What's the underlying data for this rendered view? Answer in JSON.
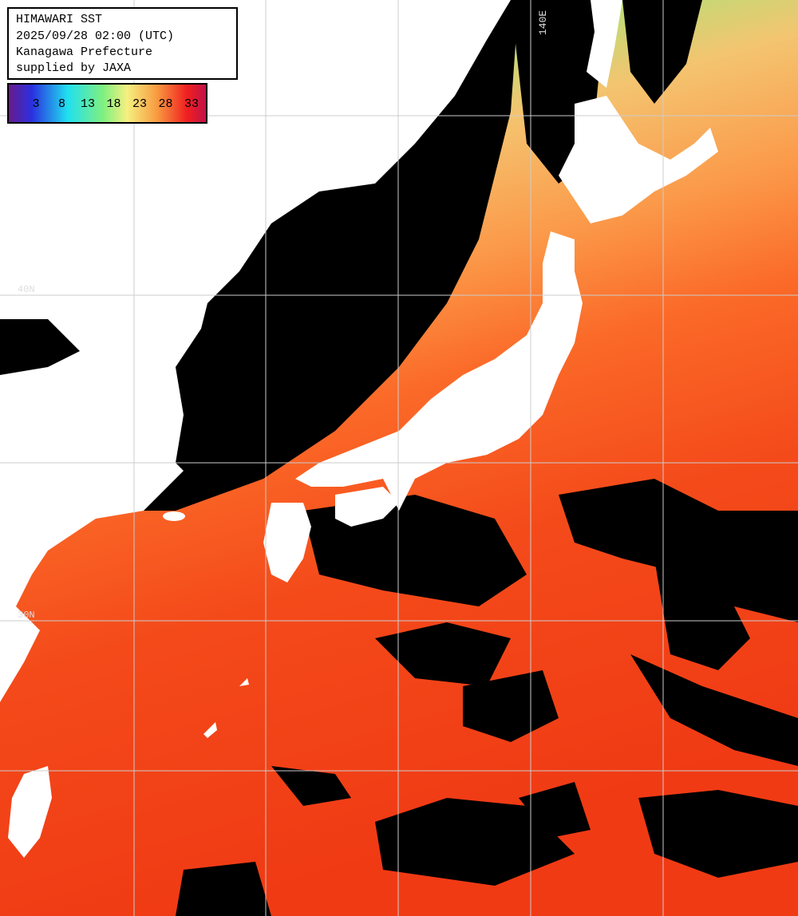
{
  "header": {
    "lines": [
      "HIMAWARI SST",
      "2025/09/28 02:00 (UTC)",
      "Kanagawa Prefecture",
      "supplied by JAXA"
    ]
  },
  "legend": {
    "ticks": [
      3,
      8,
      13,
      18,
      23,
      28,
      33
    ]
  },
  "grid_labels": [
    "140E",
    "40N",
    "30N"
  ]
}
